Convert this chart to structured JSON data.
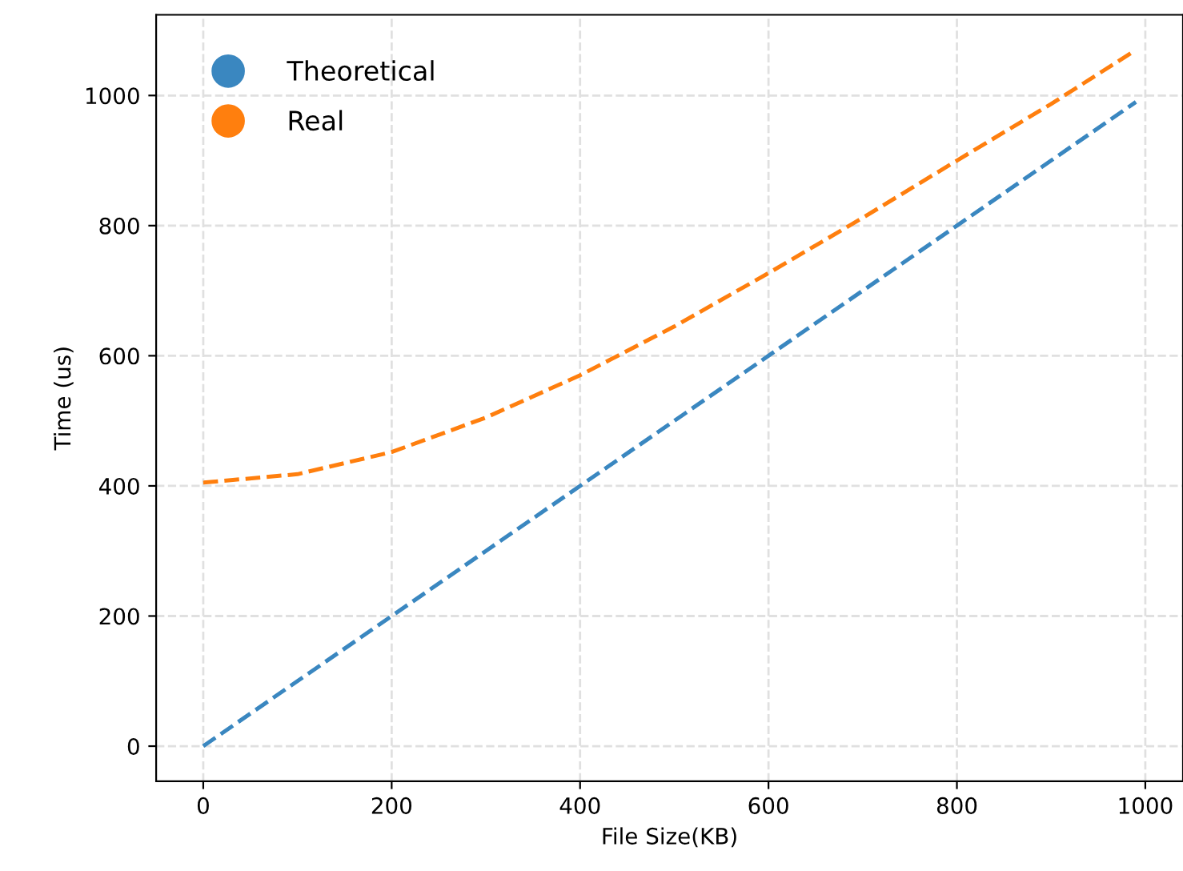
{
  "chart_data": {
    "type": "line",
    "xlabel": "File Size(KB)",
    "ylabel": "Time (us)",
    "x": [
      0,
      100,
      200,
      300,
      400,
      500,
      600,
      700,
      800,
      900,
      990
    ],
    "series": [
      {
        "name": "Theoretical",
        "color": "#3a87c0",
        "values": [
          0,
          100,
          200,
          300,
          400,
          500,
          600,
          700,
          800,
          900,
          990
        ]
      },
      {
        "name": "Real",
        "color": "#ff7f0e",
        "values": [
          405,
          418,
          452,
          505,
          570,
          645,
          727,
          812,
          900,
          987,
          1070
        ]
      }
    ],
    "xlim": [
      -50,
      1040
    ],
    "ylim": [
      -54,
      1124
    ],
    "xticks": [
      0,
      200,
      400,
      600,
      800,
      1000
    ],
    "yticks": [
      0,
      200,
      400,
      600,
      800,
      1000
    ],
    "grid": true,
    "legend": "top left",
    "marker": "none",
    "line_style": "dashed"
  }
}
